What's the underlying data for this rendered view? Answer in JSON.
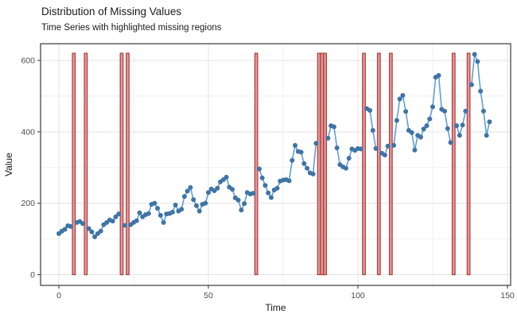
{
  "header": {
    "title": "Distribution of Missing Values",
    "subtitle": "Time Series with highlighted missing regions"
  },
  "chart_data": {
    "type": "line",
    "title": "Distribution of Missing Values",
    "subtitle": "Time Series with highlighted missing regions",
    "xlabel": "Time",
    "ylabel": "Value",
    "x_ticks": [
      0,
      50,
      100,
      150
    ],
    "y_ticks": [
      0,
      200,
      400,
      600
    ],
    "x_minor_ticks": [
      25,
      75,
      125
    ],
    "y_minor_ticks": [
      100,
      300,
      500
    ],
    "xlim": [
      -6,
      151
    ],
    "ylim": [
      -30,
      647
    ],
    "grid": true,
    "legend_position": "none",
    "x_start": 0,
    "x_step": 1,
    "x": [
      0,
      1,
      2,
      3,
      4,
      5,
      6,
      7,
      8,
      9,
      10,
      11,
      12,
      13,
      14,
      15,
      16,
      17,
      18,
      19,
      20,
      21,
      22,
      23,
      24,
      25,
      26,
      27,
      28,
      29,
      30,
      31,
      32,
      33,
      34,
      35,
      36,
      37,
      38,
      39,
      40,
      41,
      42,
      43,
      44,
      45,
      46,
      47,
      48,
      49,
      50,
      51,
      52,
      53,
      54,
      55,
      56,
      57,
      58,
      59,
      60,
      61,
      62,
      63,
      64,
      65,
      66,
      67,
      68,
      69,
      70,
      71,
      72,
      73,
      74,
      75,
      76,
      77,
      78,
      79,
      80,
      81,
      82,
      83,
      84,
      85,
      86,
      87,
      88,
      89,
      90,
      91,
      92,
      93,
      94,
      95,
      96,
      97,
      98,
      99,
      100,
      101,
      102,
      103,
      104,
      105,
      106,
      107,
      108,
      109,
      110,
      111,
      112,
      113,
      114,
      115,
      116,
      117,
      118,
      119,
      120,
      121,
      122,
      123,
      124,
      125,
      126,
      127,
      128,
      129,
      130,
      131,
      132,
      133,
      134,
      135,
      136,
      137,
      138,
      139,
      140,
      141,
      142,
      143,
      144
    ],
    "values": [
      115,
      122,
      127,
      137,
      135,
      null,
      146,
      149,
      143,
      null,
      129,
      120,
      106,
      115,
      122,
      140,
      146,
      153,
      150,
      162,
      170,
      null,
      138,
      null,
      140,
      146,
      151,
      173,
      162,
      168,
      171,
      197,
      200,
      186,
      166,
      146,
      170,
      171,
      175,
      195,
      178,
      183,
      219,
      234,
      244,
      210,
      193,
      178,
      197,
      200,
      230,
      240,
      235,
      242,
      260,
      266,
      273,
      245,
      239,
      215,
      209,
      181,
      199,
      230,
      226,
      228,
      null,
      296,
      271,
      250,
      229,
      216,
      237,
      242,
      262,
      265,
      266,
      263,
      320,
      362,
      345,
      343,
      311,
      298,
      285,
      282,
      368,
      null,
      null,
      null,
      382,
      417,
      414,
      355,
      308,
      302,
      298,
      326,
      352,
      348,
      353,
      352,
      null,
      465,
      460,
      404,
      353,
      null,
      340,
      335,
      360,
      null,
      362,
      432,
      492,
      502,
      457,
      404,
      398,
      349,
      390,
      385,
      408,
      417,
      436,
      470,
      553,
      558,
      463,
      458,
      409,
      370,
      null,
      417,
      390,
      419,
      458,
      null,
      532,
      617,
      597,
      514,
      458,
      390,
      428
    ],
    "missing_times": [
      5,
      9,
      21,
      23,
      66,
      87,
      88,
      89,
      102,
      107,
      111,
      132,
      137
    ],
    "missing_region_top": 620,
    "missing_region_bottom": 0,
    "missing_bar_width": 0.95,
    "colors": {
      "point": "#3E74A6",
      "line": "#5F9FD6",
      "missing_fill": "#DE8F8F",
      "missing_stroke": "#B23B3B",
      "grid_major": "#E3E3E3",
      "grid_minor": "#F1F1F1",
      "panel_border": "#383838",
      "panel_bg": "#FFFFFF",
      "tick_mark": "#333333",
      "tick_label": "#4D4D4D",
      "axis_title": "#1A1A1A"
    }
  }
}
